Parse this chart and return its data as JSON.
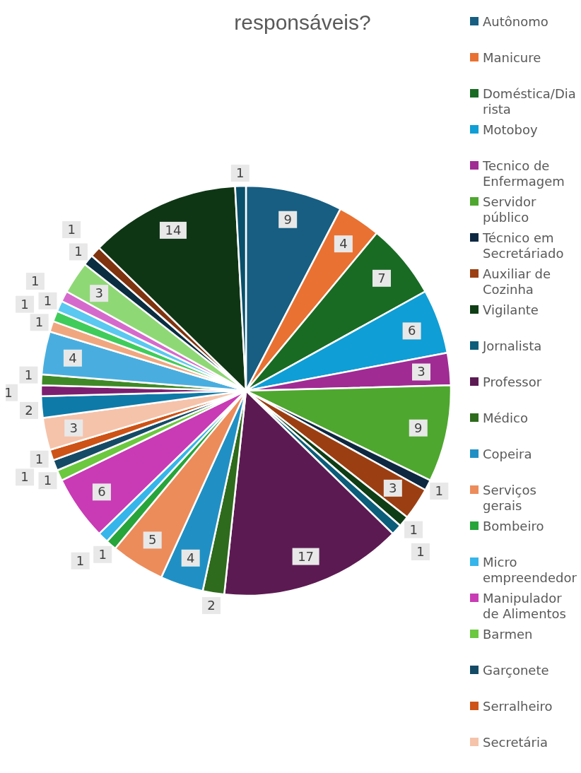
{
  "chart_data": {
    "type": "pie",
    "title": "responsáveis?",
    "categories": [
      "Autônomo",
      "Manicure",
      "Doméstica/Diarista",
      "Motoboy",
      "Tecnico de Enfermagem",
      "Servidor público",
      "Técnico em Secretáriado",
      "Auxiliar de Cozinha",
      "Vigilante",
      "Jornalista",
      "Professor",
      "Médico",
      "Copeira",
      "Serviços gerais",
      "Bombeiro",
      "Micro empreendedor",
      "Manipulador de Alimentos",
      "Barmen",
      "Garçonete",
      "Serralheiro",
      "Secretária",
      null,
      null,
      null,
      null,
      null,
      null,
      null,
      null,
      null,
      null,
      null,
      null,
      null
    ],
    "values": [
      9,
      4,
      7,
      6,
      3,
      9,
      1,
      3,
      1,
      1,
      17,
      2,
      4,
      5,
      1,
      1,
      6,
      1,
      1,
      1,
      3,
      2,
      1,
      1,
      4,
      1,
      1,
      1,
      1,
      3,
      1,
      1,
      14,
      1
    ],
    "colors": [
      "#175e82",
      "#e97132",
      "#196b24",
      "#0f9ed5",
      "#a02b93",
      "#4ea72e",
      "#0e2841",
      "#9b3f12",
      "#0f3d15",
      "#0b5d7a",
      "#5c1a52",
      "#2e6b1c",
      "#2090c4",
      "#ec8c5b",
      "#27a53a",
      "#35b5ea",
      "#c93bb5",
      "#6bc83f",
      "#154a66",
      "#cd5316",
      "#f5c3aa",
      "#0e7aa8",
      "#7d1f70",
      "#3f8a26",
      "#49aedf",
      "#f0a77f",
      "#40cc5a",
      "#5ac8f0",
      "#d66acc",
      "#8fd876",
      "#0a2d42",
      "#7f330e",
      "#0e3615",
      "#08506b"
    ],
    "data_labels": true,
    "legend": "right"
  }
}
